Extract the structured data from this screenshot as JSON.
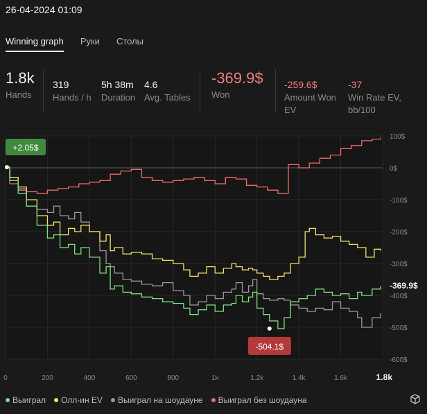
{
  "header": {
    "datetime": "26-04-2024 01:09"
  },
  "tabs": [
    {
      "label": "Winning graph",
      "active": true
    },
    {
      "label": "Руки",
      "active": false
    },
    {
      "label": "Столы",
      "active": false
    }
  ],
  "stats": {
    "hands": {
      "value": "1.8k",
      "label": "Hands"
    },
    "hands_per_h": {
      "value": "319",
      "label": "Hands / h"
    },
    "duration": {
      "value": "5h 38m",
      "label": "Duration"
    },
    "avg_tables": {
      "value": "4.6",
      "label": "Avg. Tables"
    },
    "won": {
      "value": "-369.9$",
      "label": "Won"
    },
    "amount_won_ev": {
      "value": "-259.6$",
      "label_line1": "Amount Won",
      "label_line2": "EV"
    },
    "win_rate_ev": {
      "value": "-37",
      "label_line1": "Win Rate EV,",
      "label_line2": "bb/100"
    }
  },
  "colors": {
    "won": "#7fe07f",
    "allin_ev": "#f2e46a",
    "showdown": "#9a9a9a",
    "non_showdown": "#f26b6b"
  },
  "chart_data": {
    "type": "line",
    "xlim": [
      0,
      1800
    ],
    "ylim": [
      -600,
      100
    ],
    "x_ticks": [
      "0",
      "200",
      "400",
      "600",
      "800",
      "1k",
      "1.2k",
      "1.4k",
      "1.6k",
      "1.8k"
    ],
    "y_ticks": [
      "100$",
      "0$",
      "-100$",
      "-200$",
      "-300$",
      "-400$",
      "-500$",
      "-600$"
    ],
    "annotations": {
      "start": "+2.05$",
      "min": "-504.1$",
      "end": "-369.9$"
    },
    "series": [
      {
        "name": "Выиграл",
        "color": "#7fe07f",
        "x": [
          0,
          20,
          60,
          100,
          150,
          200,
          230,
          260,
          300,
          330,
          360,
          400,
          450,
          480,
          500,
          520,
          560,
          600,
          650,
          700,
          750,
          800,
          850,
          880,
          920,
          960,
          1000,
          1040,
          1080,
          1100,
          1130,
          1160,
          1180,
          1200,
          1230,
          1260,
          1300,
          1330,
          1360,
          1400,
          1440,
          1480,
          1520,
          1560,
          1600,
          1640,
          1680,
          1700,
          1750,
          1790
        ],
        "y": [
          2,
          -40,
          -80,
          -120,
          -180,
          -220,
          -210,
          -250,
          -240,
          -270,
          -250,
          -280,
          -330,
          -310,
          -380,
          -370,
          -390,
          -395,
          -405,
          -410,
          -420,
          -425,
          -440,
          -460,
          -445,
          -430,
          -450,
          -430,
          -425,
          -400,
          -420,
          -405,
          -390,
          -440,
          -460,
          -480,
          -504,
          -470,
          -420,
          -410,
          -400,
          -380,
          -390,
          -400,
          -395,
          -410,
          -390,
          -400,
          -380,
          -370
        ]
      },
      {
        "name": "Олл-ин EV",
        "color": "#f2e46a",
        "x": [
          0,
          20,
          60,
          100,
          150,
          200,
          230,
          260,
          300,
          330,
          360,
          400,
          450,
          480,
          500,
          520,
          560,
          600,
          650,
          700,
          750,
          800,
          850,
          880,
          920,
          960,
          1000,
          1040,
          1080,
          1100,
          1130,
          1160,
          1180,
          1200,
          1230,
          1260,
          1300,
          1330,
          1360,
          1400,
          1430,
          1450,
          1480,
          1520,
          1560,
          1600,
          1640,
          1680,
          1720,
          1760,
          1790
        ],
        "y": [
          2,
          -30,
          -60,
          -100,
          -150,
          -180,
          -170,
          -210,
          -190,
          -200,
          -180,
          -200,
          -230,
          -210,
          -260,
          -250,
          -270,
          -265,
          -270,
          -285,
          -290,
          -300,
          -320,
          -340,
          -330,
          -310,
          -330,
          -315,
          -300,
          -310,
          -320,
          -315,
          -320,
          -330,
          -340,
          -350,
          -340,
          -330,
          -300,
          -280,
          -200,
          -190,
          -210,
          -220,
          -215,
          -230,
          -240,
          -250,
          -280,
          -255,
          -260
        ]
      },
      {
        "name": "Выиграл на шоудауне",
        "color": "#9a9a9a",
        "x": [
          0,
          20,
          60,
          100,
          150,
          200,
          230,
          260,
          300,
          330,
          360,
          400,
          450,
          480,
          500,
          520,
          560,
          600,
          650,
          700,
          750,
          800,
          850,
          880,
          920,
          960,
          1000,
          1040,
          1080,
          1100,
          1130,
          1160,
          1180,
          1200,
          1230,
          1260,
          1300,
          1330,
          1360,
          1400,
          1440,
          1480,
          1520,
          1560,
          1600,
          1640,
          1680,
          1700,
          1750,
          1790
        ],
        "y": [
          2,
          -30,
          -70,
          -120,
          -130,
          -140,
          -120,
          -150,
          -160,
          -140,
          -170,
          -200,
          -260,
          -300,
          -310,
          -330,
          -350,
          -355,
          -365,
          -370,
          -360,
          -385,
          -400,
          -430,
          -420,
          -400,
          -410,
          -390,
          -380,
          -360,
          -390,
          -370,
          -350,
          -395,
          -410,
          -415,
          -410,
          -415,
          -430,
          -440,
          -450,
          -440,
          -445,
          -420,
          -440,
          -450,
          -470,
          -500,
          -470,
          -455
        ]
      },
      {
        "name": "Выиграл без шоудауна",
        "color": "#f26b6b",
        "x": [
          0,
          20,
          60,
          100,
          150,
          200,
          250,
          300,
          350,
          400,
          450,
          500,
          550,
          600,
          650,
          700,
          750,
          800,
          850,
          900,
          950,
          1000,
          1050,
          1100,
          1150,
          1200,
          1250,
          1300,
          1350,
          1400,
          1450,
          1500,
          1550,
          1600,
          1650,
          1700,
          1750,
          1790
        ],
        "y": [
          2,
          -50,
          -65,
          -75,
          -80,
          -70,
          -65,
          -60,
          -50,
          -45,
          -40,
          -20,
          -10,
          -5,
          -30,
          -40,
          -45,
          -40,
          -35,
          -30,
          -40,
          -50,
          -30,
          -35,
          -55,
          -60,
          -70,
          -80,
          10,
          0,
          15,
          30,
          40,
          60,
          70,
          85,
          90,
          95
        ]
      }
    ]
  },
  "legend": [
    {
      "label": "Выиграл",
      "color": "#7fe07f"
    },
    {
      "label": "Олл-ин EV",
      "color": "#f2e46a"
    },
    {
      "label": "Выиграл на шоудауне",
      "color": "#9a9a9a"
    },
    {
      "label": "Выиграл без шоудауна",
      "color": "#f26b6b"
    }
  ],
  "icons": {
    "corner": "box-icon"
  }
}
